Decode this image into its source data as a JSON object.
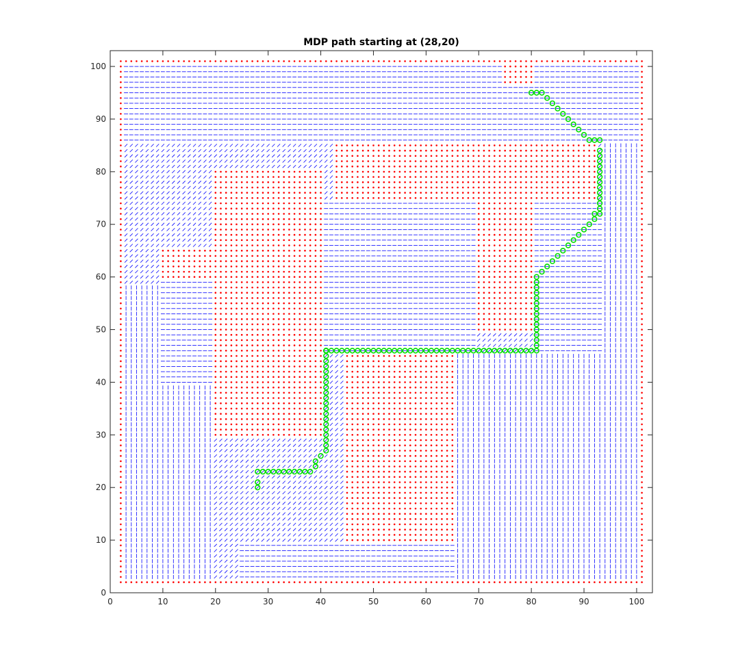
{
  "chart_data": {
    "type": "scatter",
    "title": "MDP path starting at (28,20)",
    "xlabel": "",
    "ylabel": "",
    "xlim": [
      0,
      103
    ],
    "ylim": [
      0,
      103
    ],
    "x_ticks": [
      0,
      10,
      20,
      30,
      40,
      50,
      60,
      70,
      80,
      90,
      100
    ],
    "y_ticks": [
      0,
      10,
      20,
      30,
      40,
      50,
      60,
      70,
      80,
      90,
      100
    ],
    "grid": false,
    "legend": "none",
    "colors": {
      "obstacle": "#ff0000",
      "policy_arrow": "#0000ff",
      "path": "#00dd00"
    },
    "obstacles": {
      "marker": "dot",
      "color": "#ff0000",
      "rectangles": [
        {
          "x": [
            2,
            101
          ],
          "y": [
            2,
            2
          ]
        },
        {
          "x": [
            2,
            101
          ],
          "y": [
            101,
            101
          ]
        },
        {
          "x": [
            2,
            2
          ],
          "y": [
            2,
            101
          ]
        },
        {
          "x": [
            101,
            101
          ],
          "y": [
            2,
            101
          ]
        },
        {
          "x": [
            20,
            40
          ],
          "y": [
            30,
            80
          ]
        },
        {
          "x": [
            10,
            20
          ],
          "y": [
            60,
            65
          ]
        },
        {
          "x": [
            45,
            65
          ],
          "y": [
            10,
            45
          ]
        },
        {
          "x": [
            43,
            92
          ],
          "y": [
            75,
            85
          ]
        },
        {
          "x": [
            70,
            80
          ],
          "y": [
            50,
            75
          ]
        },
        {
          "x": [
            75,
            80
          ],
          "y": [
            97,
            100
          ]
        }
      ]
    },
    "policy_field": {
      "marker": "line-segment",
      "color": "#0000ff",
      "x_range": [
        3,
        100
      ],
      "y_range": [
        3,
        100
      ],
      "orientation_zones": [
        {
          "region": "left-lower",
          "x": [
            3,
            19
          ],
          "y": [
            3,
            58
          ],
          "direction": "vertical"
        },
        {
          "region": "top-band",
          "x": [
            3,
            100
          ],
          "y": [
            86,
            100
          ],
          "direction": "horizontal"
        },
        {
          "region": "mid-left-horizontal",
          "x": [
            10,
            20
          ],
          "y": [
            40,
            59
          ],
          "direction": "horizontal"
        },
        {
          "region": "center",
          "x": [
            41,
            69
          ],
          "y": [
            46,
            74
          ],
          "direction": "horizontal"
        },
        {
          "region": "right-column",
          "x": [
            94,
            100
          ],
          "y": [
            3,
            85
          ],
          "direction": "vertical"
        },
        {
          "region": "bottom-middle",
          "x": [
            25,
            66
          ],
          "y": [
            3,
            9
          ],
          "direction": "horizontal"
        },
        {
          "region": "lower-right",
          "x": [
            66,
            93
          ],
          "y": [
            3,
            45
          ],
          "direction": "vertical"
        },
        {
          "region": "right-middle",
          "x": [
            81,
            93
          ],
          "y": [
            46,
            74
          ],
          "direction": "horizontal"
        }
      ]
    },
    "path": {
      "name": "",
      "marker": "circle",
      "color": "#00dd00",
      "start": [
        28,
        20
      ],
      "x": [
        28,
        28,
        28,
        29,
        30,
        31,
        32,
        33,
        34,
        35,
        36,
        37,
        38,
        39,
        39,
        40,
        41,
        41,
        41,
        41,
        41,
        41,
        41,
        41,
        41,
        41,
        41,
        41,
        41,
        41,
        41,
        41,
        41,
        41,
        41,
        41,
        41,
        41,
        41,
        41,
        42,
        43,
        44,
        45,
        46,
        47,
        48,
        49,
        50,
        51,
        52,
        53,
        54,
        55,
        56,
        57,
        58,
        59,
        60,
        61,
        62,
        63,
        64,
        65,
        66,
        67,
        68,
        69,
        70,
        71,
        72,
        73,
        74,
        75,
        76,
        77,
        78,
        79,
        80,
        81,
        81,
        81,
        81,
        81,
        81,
        81,
        81,
        81,
        81,
        81,
        81,
        81,
        81,
        81,
        82,
        83,
        84,
        85,
        86,
        87,
        88,
        89,
        90,
        91,
        92,
        92,
        93,
        93,
        93,
        93,
        93,
        93,
        93,
        93,
        93,
        93,
        93,
        93,
        93,
        93,
        92,
        91,
        90,
        89,
        88,
        87,
        86,
        85,
        84,
        83,
        82,
        81,
        80
      ],
      "y": [
        20,
        21,
        23,
        23,
        23,
        23,
        23,
        23,
        23,
        23,
        23,
        23,
        23,
        24,
        25,
        26,
        27,
        28,
        29,
        30,
        31,
        32,
        33,
        34,
        35,
        36,
        37,
        38,
        39,
        40,
        41,
        42,
        43,
        44,
        45,
        46,
        46,
        46,
        46,
        46,
        46,
        46,
        46,
        46,
        46,
        46,
        46,
        46,
        46,
        46,
        46,
        46,
        46,
        46,
        46,
        46,
        46,
        46,
        46,
        46,
        46,
        46,
        46,
        46,
        46,
        46,
        46,
        46,
        46,
        46,
        46,
        46,
        46,
        46,
        46,
        46,
        46,
        46,
        46,
        46,
        47,
        48,
        49,
        50,
        51,
        52,
        53,
        54,
        55,
        56,
        57,
        58,
        59,
        60,
        61,
        62,
        63,
        64,
        65,
        66,
        67,
        68,
        69,
        70,
        71,
        72,
        72,
        73,
        74,
        75,
        76,
        77,
        78,
        79,
        80,
        81,
        82,
        83,
        84,
        86,
        86,
        86,
        87,
        88,
        89,
        90,
        91,
        92,
        93,
        94,
        95,
        95,
        95
      ]
    }
  }
}
